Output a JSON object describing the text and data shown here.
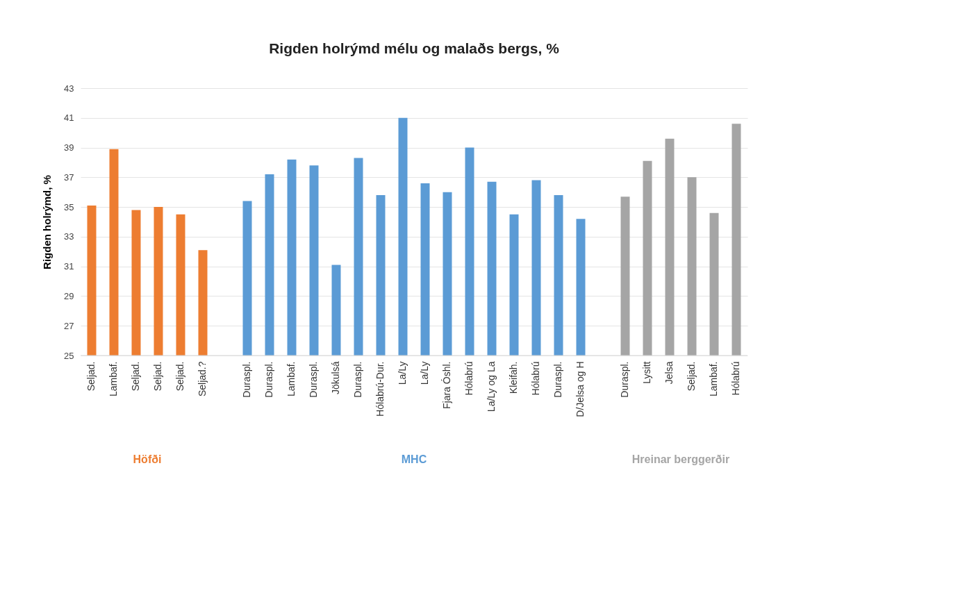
{
  "chart_data": {
    "type": "bar",
    "title": "Rigden holrýmd mélu og malaðs bergs, %",
    "ylabel": "Rigden holrýmd, %",
    "categories": [
      "Seljad.",
      "Lambaf.",
      "Seljad.",
      "Seljad.",
      "Seljad.",
      "Seljad.?",
      null,
      "Duraspl.",
      "Duraspl.",
      "Lambaf.",
      "Duraspl.",
      "Jökulsá",
      "Duraspl.",
      "Hólabrú-Dur.",
      "La/Ly",
      "La/Ly",
      "Fjara Óshl.",
      "Hólabrú",
      "La/Ly og La",
      "Kleifah.",
      "Hólabrú",
      "Duraspl.",
      "D/Jelsa og H",
      null,
      "Duraspl.",
      "Lysitt",
      "Jelsa",
      "Seljad.",
      "Lambaf.",
      "Hólabrú"
    ],
    "series": [
      {
        "name": "Höfði",
        "color": "#ed7d31",
        "values": [
          35.1,
          38.9,
          34.8,
          35.0,
          34.5,
          32.1,
          null,
          null,
          null,
          null,
          null,
          null,
          null,
          null,
          null,
          null,
          null,
          null,
          null,
          null,
          null,
          null,
          null,
          null,
          null,
          null,
          null,
          null,
          null,
          null
        ]
      },
      {
        "name": "MHC",
        "color": "#5b9bd5",
        "values": [
          null,
          null,
          null,
          null,
          null,
          null,
          null,
          35.4,
          37.2,
          38.2,
          37.8,
          31.1,
          38.3,
          35.8,
          41.0,
          36.6,
          36.0,
          39.0,
          36.7,
          34.5,
          36.8,
          35.8,
          34.2,
          null,
          null,
          null,
          null,
          null,
          null,
          null
        ]
      },
      {
        "name": "Hreinar berggerðir",
        "color": "#a5a5a5",
        "values": [
          null,
          null,
          null,
          null,
          null,
          null,
          null,
          null,
          null,
          null,
          null,
          null,
          null,
          null,
          null,
          null,
          null,
          null,
          null,
          null,
          null,
          null,
          null,
          null,
          35.7,
          38.1,
          39.6,
          37.0,
          34.6,
          40.6
        ]
      }
    ],
    "ylim": [
      25,
      43
    ],
    "yticks": [
      25,
      27,
      29,
      31,
      33,
      35,
      37,
      39,
      41,
      43
    ],
    "grid": "y",
    "legend": false
  }
}
